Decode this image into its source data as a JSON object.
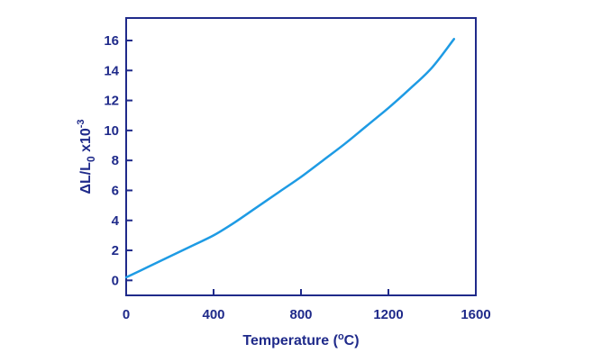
{
  "colors": {
    "axis": "#1f2a8a",
    "line": "#1e9be4",
    "text": "#1f2a8a",
    "background": "#ffffff"
  },
  "chart_data": {
    "type": "line",
    "title": "",
    "xlabel": "Temperature (°C)",
    "xlabel_parts": {
      "prefix": "Temperature (",
      "sup": "o",
      "suffix": "C)"
    },
    "ylabel": "ΔL/L0 x10-3",
    "ylabel_parts": {
      "a": "ΔL/L",
      "sub": "0",
      "b": " x10",
      "sup": "-3"
    },
    "xlim": [
      0,
      1600
    ],
    "ylim": [
      -1,
      17.5
    ],
    "xticks": [
      0,
      400,
      800,
      1200,
      1600
    ],
    "yticks": [
      0,
      2,
      4,
      6,
      8,
      10,
      12,
      14,
      16
    ],
    "grid": false,
    "series": [
      {
        "x": [
          0,
          100,
          200,
          300,
          400,
          500,
          600,
          700,
          800,
          900,
          1000,
          1100,
          1200,
          1300,
          1400,
          1500
        ],
        "y": [
          0.2,
          0.9,
          1.6,
          2.3,
          3.0,
          3.9,
          4.9,
          5.9,
          6.9,
          8.0,
          9.1,
          10.3,
          11.5,
          12.8,
          14.2,
          16.1
        ]
      }
    ]
  }
}
